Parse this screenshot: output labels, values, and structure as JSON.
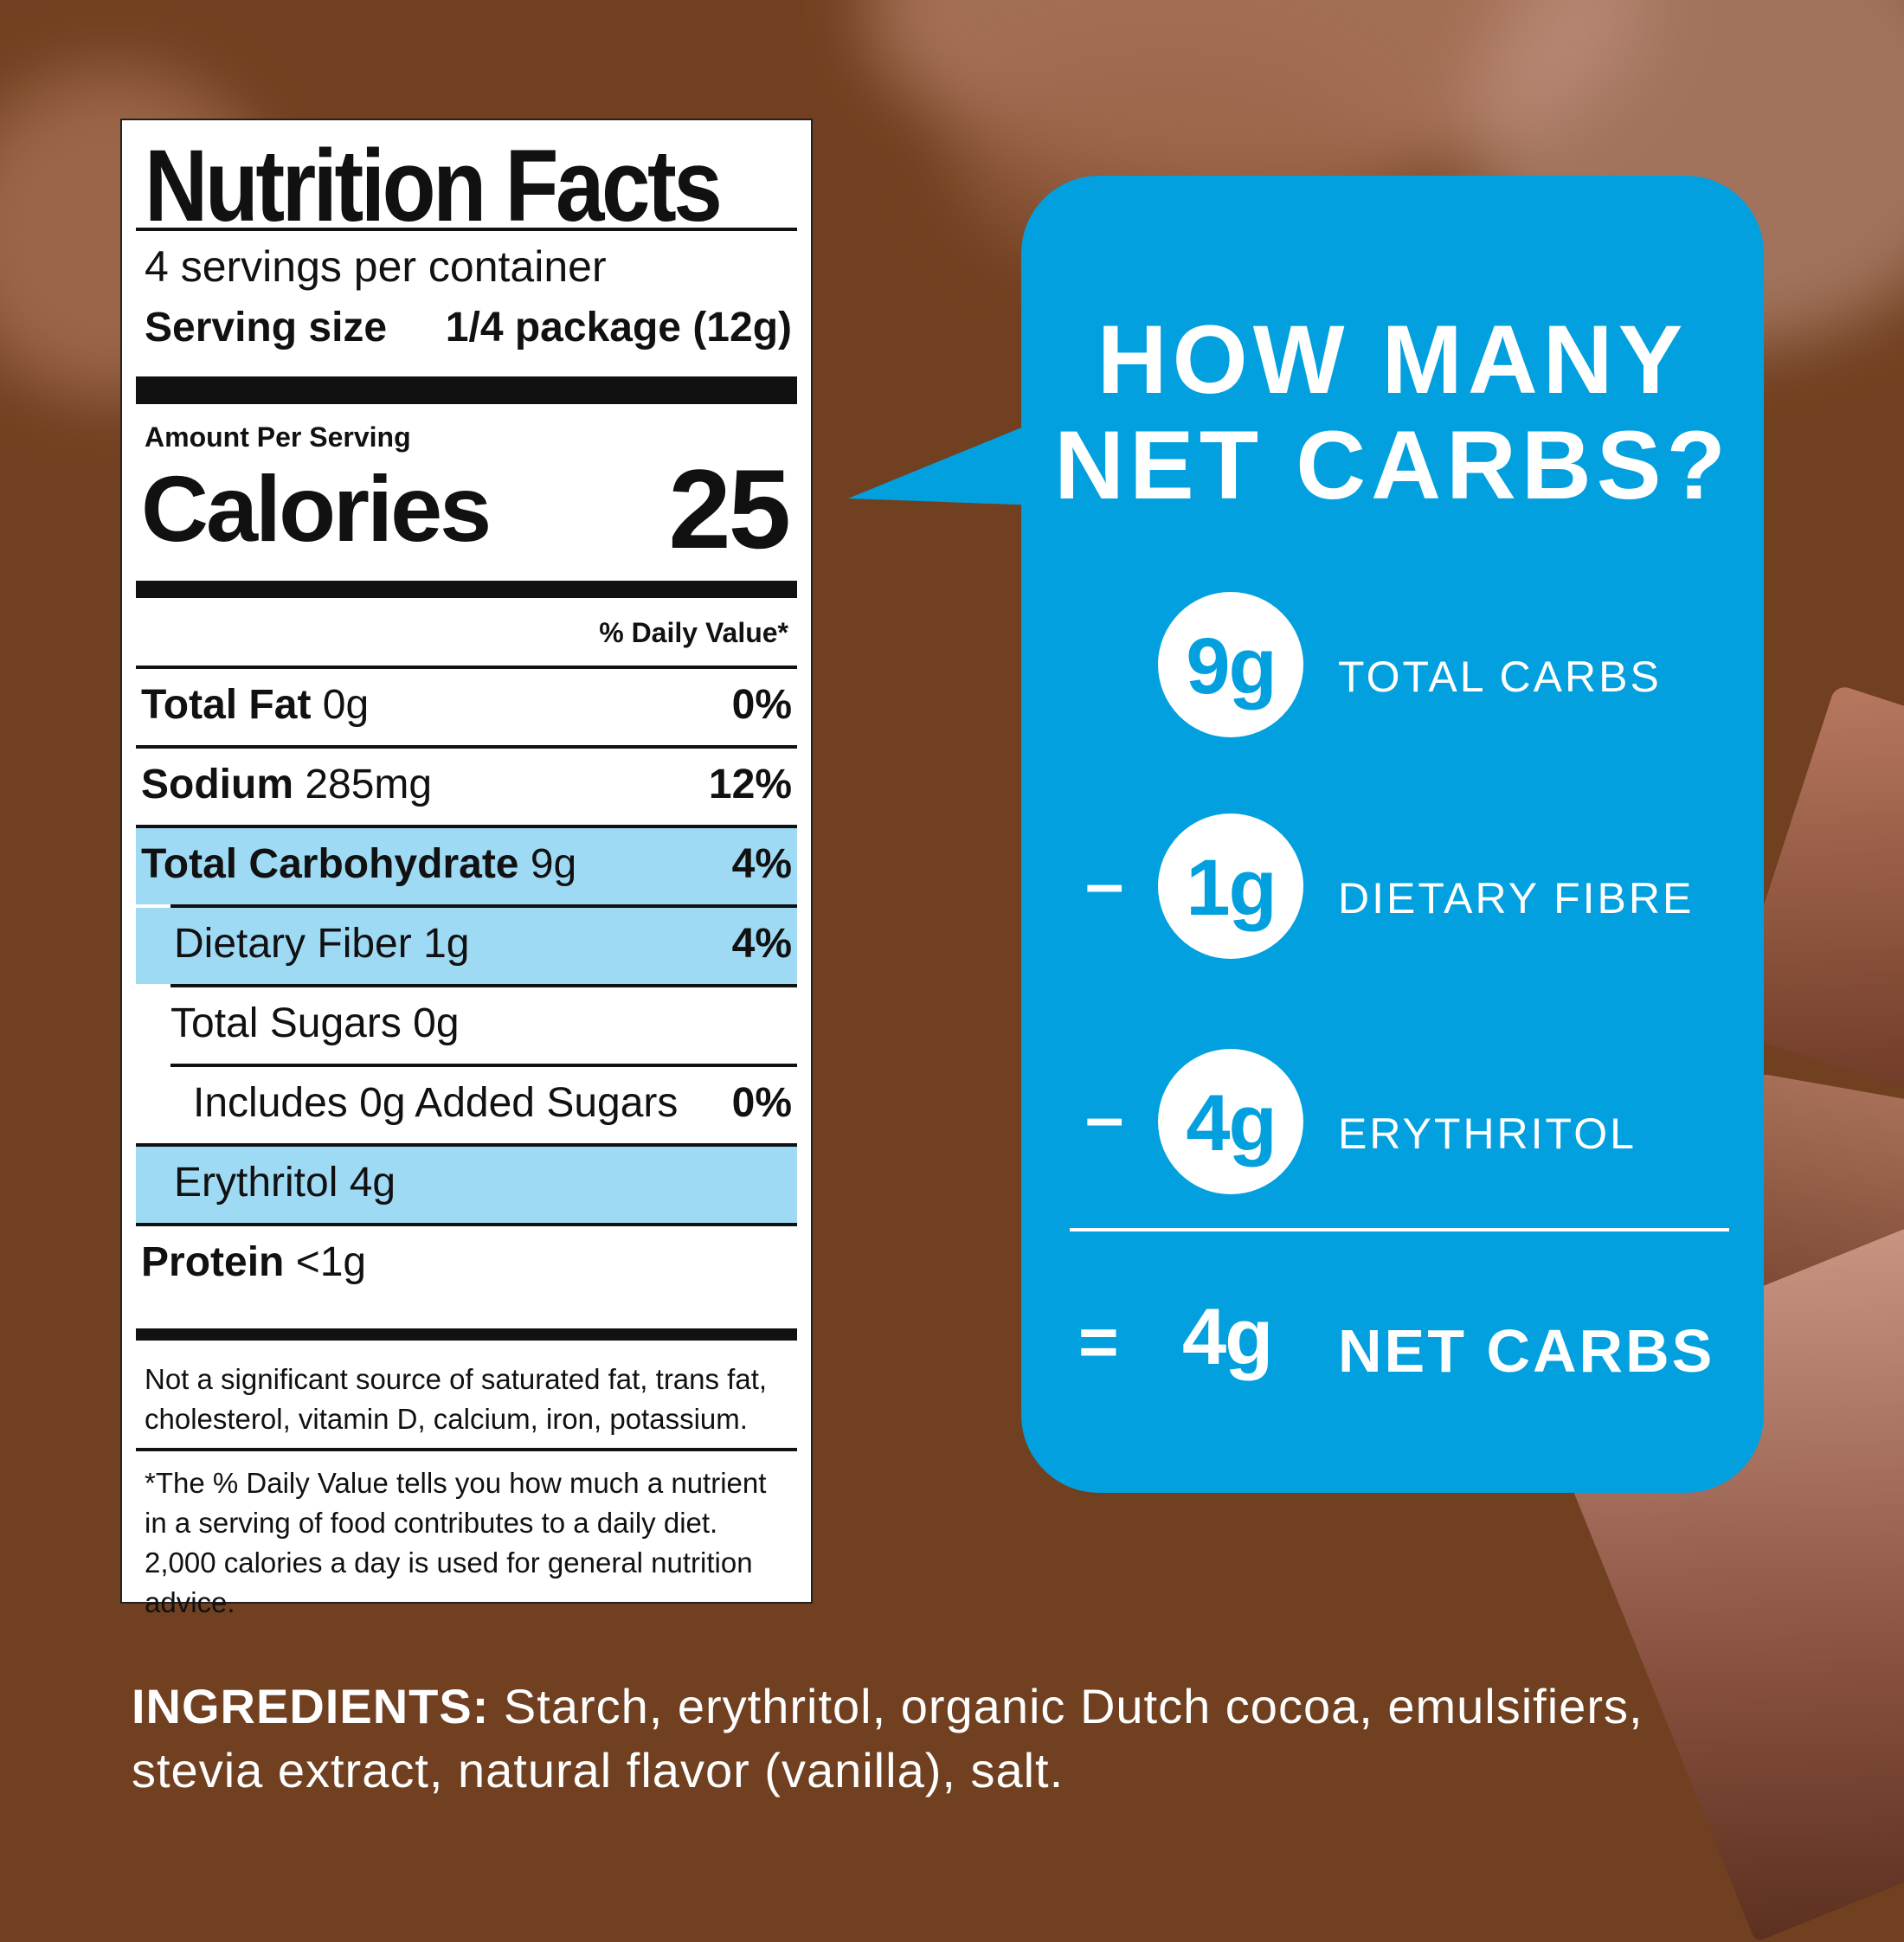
{
  "label": {
    "title": "Nutrition Facts",
    "servings": "4 servings per container",
    "serving_size_label": "Serving size",
    "serving_size_value": "1/4 package (12g)",
    "amount_per_serving": "Amount Per Serving",
    "calories_label": "Calories",
    "calories_value": "25",
    "daily_value_header": "% Daily Value*",
    "rows": [
      {
        "name": "Total Fat",
        "amount": " 0g",
        "dv": "0%"
      },
      {
        "name": "Sodium",
        "amount": " 285mg",
        "dv": "12%"
      },
      {
        "name": "Total Carbohydrate",
        "amount": " 9g",
        "dv": "4%"
      },
      {
        "name": "Dietary Fiber 1g",
        "dv": "4%"
      },
      {
        "name": "Total Sugars 0g",
        "dv": ""
      },
      {
        "name": "Includes 0g Added Sugars",
        "dv": "0%"
      },
      {
        "name": "Erythritol 4g",
        "dv": ""
      },
      {
        "name": "Protein",
        "amount": " <1g",
        "dv": ""
      }
    ],
    "footnote1": "Not a significant source of saturated fat, trans fat, cholesterol, vitamin D, calcium, iron, potassium.",
    "footnote2": "*The % Daily Value tells you how much a nutrient in a serving of food contributes to a daily diet. 2,000 calories a day is used for general nutrition advice."
  },
  "bubble": {
    "question_line1": "HOW MANY",
    "question_line2": "NET CARBS?",
    "items": [
      {
        "value": "9g",
        "label": "TOTAL CARBS",
        "op": ""
      },
      {
        "value": "1g",
        "label": "DIETARY FIBRE",
        "op": "–"
      },
      {
        "value": "4g",
        "label": "ERYTHRITOL",
        "op": "–"
      }
    ],
    "result_op": "=",
    "result_value": "4g",
    "result_label": "NET CARBS"
  },
  "ingredients": {
    "heading": "INGREDIENTS:",
    "text": " Starch, erythritol, organic Dutch cocoa, emulsifiers, stevia extract, natural flavor (vanilla), salt."
  },
  "colors": {
    "background": "#714020",
    "bubble": "#02a0de",
    "highlight": "#9fdaf4"
  }
}
